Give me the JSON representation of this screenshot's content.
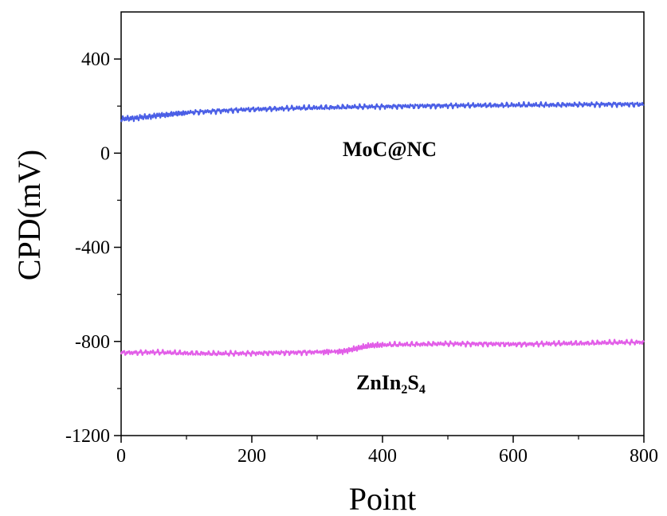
{
  "chart_data": {
    "type": "line",
    "xlabel": "Point",
    "ylabel": "CPD(mV)",
    "xlim": [
      0,
      800
    ],
    "ylim": [
      -1200,
      600
    ],
    "xticks": [
      0,
      200,
      400,
      600,
      800
    ],
    "yticks": [
      -1200,
      -800,
      -400,
      0,
      400
    ],
    "xtick_labels": [
      "0",
      "200",
      "400",
      "600",
      "800"
    ],
    "ytick_labels": [
      "-1200",
      "-800",
      "-400",
      "0",
      "400"
    ],
    "grid": false,
    "series": [
      {
        "name": "MoC@NC",
        "color": "#4b5fe6",
        "x": [
          0,
          25,
          50,
          75,
          100,
          150,
          200,
          250,
          300,
          350,
          400,
          450,
          500,
          550,
          600,
          650,
          700,
          750,
          800
        ],
        "y": [
          145,
          150,
          158,
          165,
          172,
          180,
          186,
          190,
          193,
          196,
          198,
          200,
          202,
          203,
          204,
          205,
          206,
          208,
          207
        ]
      },
      {
        "name": "ZnIn2S4",
        "color": "#e25ee8",
        "x": [
          0,
          50,
          100,
          150,
          200,
          250,
          300,
          340,
          360,
          380,
          400,
          450,
          500,
          550,
          600,
          650,
          700,
          750,
          800
        ],
        "y": [
          -848,
          -846,
          -850,
          -852,
          -850,
          -848,
          -845,
          -842,
          -830,
          -818,
          -815,
          -812,
          -810,
          -810,
          -812,
          -810,
          -808,
          -805,
          -803
        ]
      }
    ],
    "annotations": {
      "moc": "MoC@NC",
      "zn_base": "ZnIn",
      "zn_sub1": "2",
      "zn_mid": "S",
      "zn_sub2": "4"
    }
  }
}
